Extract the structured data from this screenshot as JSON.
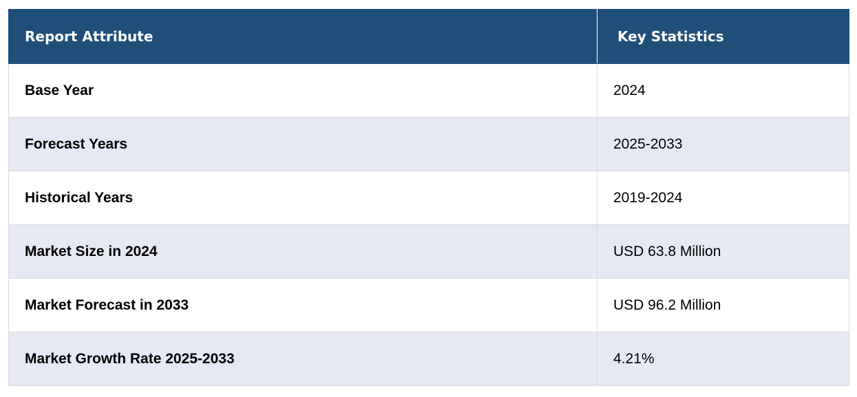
{
  "header": {
    "col1": "Report Attribute",
    "col2": "Key Statistics"
  },
  "rows": [
    {
      "attribute": "Base Year",
      "value": "2024"
    },
    {
      "attribute": "Forecast Years",
      "value": "2025-2033"
    },
    {
      "attribute": "Historical Years",
      "value": "2019-2024"
    },
    {
      "attribute": "Market Size in 2024",
      "value": "USD 63.8 Million"
    },
    {
      "attribute": "Market Forecast in 2033",
      "value": "USD 96.2 Million"
    },
    {
      "attribute": "Market Growth Rate 2025-2033",
      "value": "4.21%"
    }
  ],
  "colors": {
    "header_bg": "#1f4e79",
    "header_text": "#ffffff",
    "row_alt_bg": "#e6e9f4",
    "row_bg": "#ffffff",
    "border": "#d9d9d9"
  }
}
